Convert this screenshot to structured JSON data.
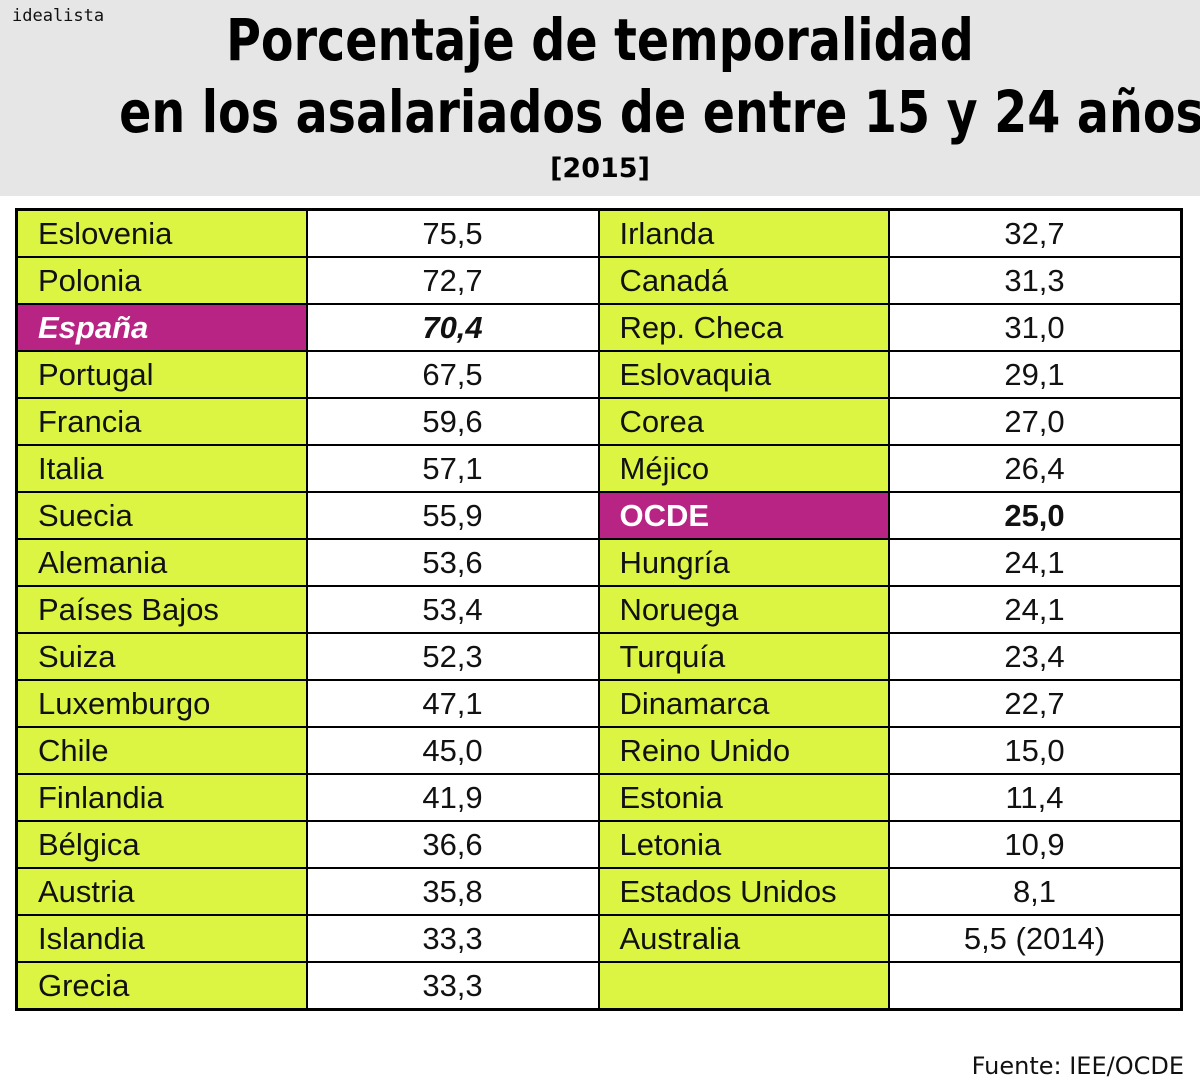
{
  "logo": "idealista",
  "title_line1": "Porcentaje de temporalidad",
  "title_line2": "en los asalariados de entre 15 y 24 años",
  "subtitle": "[2015]",
  "source": "Fuente: IEE/OCDE",
  "colors": {
    "country_bg": "#dcf542",
    "highlight_bg": "#b82483",
    "header_bg": "#e6e6e6"
  },
  "chart_data": {
    "type": "table",
    "title": "Porcentaje de temporalidad en los asalariados de entre 15 y 24 años",
    "subtitle": "[2015]",
    "left": [
      {
        "country": "Eslovenia",
        "value": "75,5"
      },
      {
        "country": "Polonia",
        "value": "72,7"
      },
      {
        "country": "España",
        "value": "70,4",
        "highlight": true,
        "italic": true
      },
      {
        "country": "Portugal",
        "value": "67,5"
      },
      {
        "country": "Francia",
        "value": "59,6"
      },
      {
        "country": "Italia",
        "value": "57,1"
      },
      {
        "country": "Suecia",
        "value": "55,9"
      },
      {
        "country": "Alemania",
        "value": "53,6"
      },
      {
        "country": "Países Bajos",
        "value": "53,4"
      },
      {
        "country": "Suiza",
        "value": "52,3"
      },
      {
        "country": "Luxemburgo",
        "value": "47,1"
      },
      {
        "country": "Chile",
        "value": "45,0"
      },
      {
        "country": "Finlandia",
        "value": "41,9"
      },
      {
        "country": "Bélgica",
        "value": "36,6"
      },
      {
        "country": "Austria",
        "value": "35,8"
      },
      {
        "country": "Islandia",
        "value": "33,3"
      },
      {
        "country": "Grecia",
        "value": "33,3"
      }
    ],
    "right": [
      {
        "country": "Irlanda",
        "value": "32,7"
      },
      {
        "country": "Canadá",
        "value": "31,3"
      },
      {
        "country": "Rep. Checa",
        "value": "31,0"
      },
      {
        "country": "Eslovaquia",
        "value": "29,1"
      },
      {
        "country": "Corea",
        "value": "27,0"
      },
      {
        "country": "Méjico",
        "value": "26,4"
      },
      {
        "country": "OCDE",
        "value": "25,0",
        "highlight": true
      },
      {
        "country": "Hungría",
        "value": "24,1"
      },
      {
        "country": "Noruega",
        "value": "24,1"
      },
      {
        "country": "Turquía",
        "value": "23,4"
      },
      {
        "country": "Dinamarca",
        "value": "22,7"
      },
      {
        "country": "Reino Unido",
        "value": "15,0"
      },
      {
        "country": "Estonia",
        "value": "11,4"
      },
      {
        "country": "Letonia",
        "value": "10,9"
      },
      {
        "country": "Estados Unidos",
        "value": "8,1"
      },
      {
        "country": "Australia",
        "value": "5,5 (2014)"
      },
      {
        "country": "",
        "value": ""
      }
    ]
  }
}
